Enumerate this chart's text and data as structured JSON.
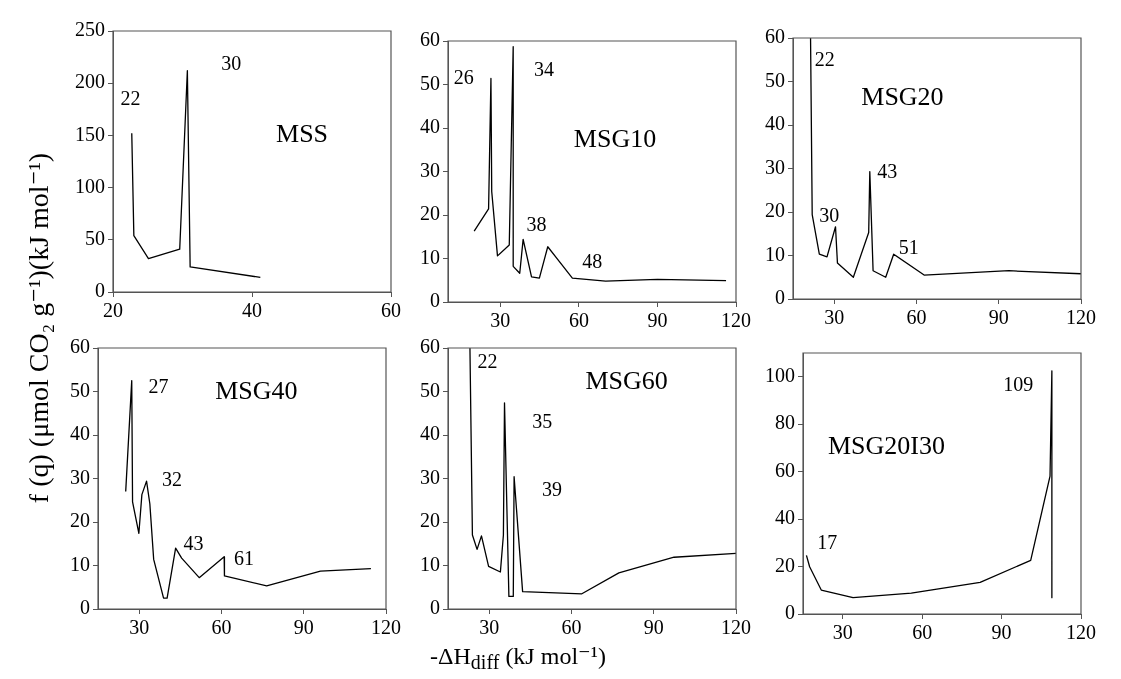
{
  "chart_data": [
    {
      "type": "line",
      "title": "MSS",
      "ylabel": "f (q) (μmol CO₂ g⁻¹)(kJ mol⁻¹)",
      "marker": "none",
      "line_style": "solid",
      "grid": false,
      "xlim": [
        20,
        60
      ],
      "xticks": [
        20,
        40,
        60
      ],
      "ylim": [
        0,
        250
      ],
      "yticks": [
        0,
        50,
        100,
        150,
        200,
        250
      ],
      "series": [
        {
          "color": "#000000",
          "x": [
            22.7,
            23.0,
            25.1,
            29.6,
            30.7,
            31.1,
            41.2
          ],
          "values": [
            152,
            54,
            32,
            41,
            212,
            24,
            14
          ]
        }
      ],
      "annotations": [
        "22",
        "30"
      ]
    },
    {
      "type": "line",
      "title": "MSG10",
      "marker": "none",
      "line_style": "solid",
      "grid": false,
      "xlim": [
        10,
        120
      ],
      "xticks": [
        30,
        60,
        90,
        120
      ],
      "ylim": [
        0,
        60
      ],
      "yticks": [
        0,
        10,
        20,
        30,
        40,
        50,
        60
      ],
      "series": [
        {
          "color": "#000000",
          "x": [
            20.0,
            25.5,
            26.4,
            26.7,
            28.9,
            33.4,
            34.9,
            34.9,
            37.4,
            38.7,
            41.9,
            44.9,
            48.1,
            57.5,
            70.2,
            90,
            116.2
          ],
          "values": [
            16.3,
            21.4,
            51.4,
            25.4,
            10.6,
            13.1,
            58.7,
            8.2,
            6.6,
            14.4,
            5.8,
            5.5,
            12.7,
            5.5,
            4.8,
            5.2,
            4.9
          ]
        }
      ],
      "annotations": [
        "26",
        "34",
        "38",
        "48"
      ]
    },
    {
      "type": "line",
      "title": "MSG20",
      "marker": "none",
      "line_style": "solid",
      "grid": false,
      "xlim": [
        15,
        120
      ],
      "xticks": [
        30,
        60,
        90,
        120
      ],
      "ylim": [
        0,
        60
      ],
      "yticks": [
        0,
        10,
        20,
        30,
        40,
        50,
        60
      ],
      "series": [
        {
          "color": "#000000",
          "x": [
            21.4,
            22.0,
            24.6,
            27.4,
            30.5,
            31.2,
            37.0,
            42.6,
            43.0,
            44.2,
            48.8,
            51.7,
            62.8,
            93.7,
            120
          ],
          "values": [
            60,
            19.4,
            10.3,
            9.7,
            16.6,
            8.3,
            5.0,
            15.3,
            29.3,
            6.5,
            5.0,
            10.3,
            5.5,
            6.5,
            5.8
          ]
        }
      ],
      "annotations": [
        "22",
        "30",
        "43",
        "51"
      ]
    },
    {
      "type": "line",
      "title": "MSG40",
      "marker": "none",
      "line_style": "solid",
      "grid": false,
      "xlim": [
        15,
        120
      ],
      "xticks": [
        30,
        60,
        90,
        120
      ],
      "ylim": [
        0,
        60
      ],
      "yticks": [
        0,
        10,
        20,
        30,
        40,
        50,
        60
      ],
      "series": [
        {
          "color": "#000000",
          "x": [
            25.1,
            27.3,
            27.6,
            29.9,
            31.0,
            32.7,
            33.9,
            35.3,
            38.9,
            40.2,
            43.3,
            45.5,
            51.9,
            61.0,
            61.1,
            76.5,
            96.1,
            114.5
          ],
          "values": [
            27.0,
            52.5,
            24.6,
            17.4,
            26.3,
            29.4,
            24.2,
            11.4,
            2.5,
            2.5,
            14.0,
            11.7,
            7.2,
            12.0,
            7.6,
            5.3,
            8.7,
            9.3
          ]
        }
      ],
      "annotations": [
        "27",
        "32",
        "43",
        "61"
      ]
    },
    {
      "type": "line",
      "title": "MSG60",
      "xlabel": "-ΔH$_{diff}$ (kJ mol⁻¹)",
      "marker": "none",
      "line_style": "solid",
      "grid": false,
      "xlim": [
        15,
        120
      ],
      "xticks": [
        30,
        60,
        90,
        120
      ],
      "ylim": [
        0,
        60
      ],
      "yticks": [
        0,
        10,
        20,
        30,
        40,
        50,
        60
      ],
      "series": [
        {
          "color": "#000000",
          "x": [
            23.0,
            23.9,
            25.6,
            27.2,
            29.8,
            34.1,
            35.2,
            35.6,
            37.2,
            38.8,
            39.1,
            42.2,
            63.8,
            77.3,
            97.4,
            120
          ],
          "values": [
            60,
            17.0,
            13.7,
            16.8,
            9.8,
            8.5,
            17,
            47.4,
            2.9,
            2.9,
            30.4,
            4.0,
            3.5,
            8.3,
            11.9,
            12.8
          ]
        }
      ],
      "annotations": [
        "22",
        "35",
        "39"
      ]
    },
    {
      "type": "line",
      "title": "MSG20I30",
      "marker": "none",
      "line_style": "solid",
      "grid": false,
      "xlim": [
        15,
        120
      ],
      "xticks": [
        30,
        60,
        90,
        120
      ],
      "ylim": [
        0,
        110
      ],
      "yticks": [
        0,
        20,
        40,
        60,
        80,
        100
      ],
      "series": [
        {
          "color": "#000000",
          "x": [
            16.3,
            17.5,
            21.9,
            33.9,
            55.9,
            81.9,
            101,
            108.3,
            109,
            109
          ],
          "values": [
            24.7,
            19.9,
            10.1,
            6.9,
            8.8,
            13.3,
            22.6,
            58.1,
            102.5,
            6.9
          ]
        }
      ],
      "annotations": [
        "109",
        "17"
      ]
    }
  ]
}
